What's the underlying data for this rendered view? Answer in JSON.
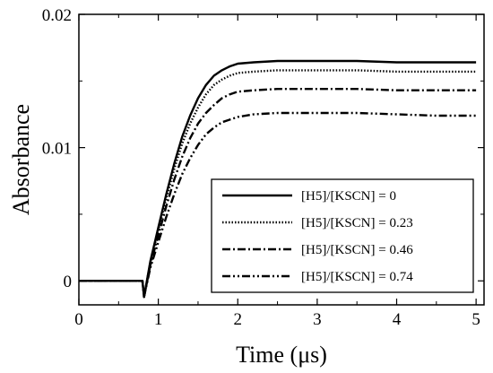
{
  "chart_data": {
    "type": "line",
    "title": "",
    "xlabel": "Time (μs)",
    "ylabel": "Absorbance",
    "xlim": [
      0,
      5.1
    ],
    "ylim": [
      -0.0018,
      0.02
    ],
    "x_ticks": [
      0,
      1,
      2,
      3,
      4,
      5
    ],
    "x_tick_labels": [
      "0",
      "1",
      "2",
      "3",
      "4",
      "5"
    ],
    "y_ticks": [
      0,
      0.01,
      0.02
    ],
    "y_tick_labels": [
      "0",
      "0.01",
      "0.02"
    ],
    "grid": false,
    "legend_position": "bottom-right",
    "series": [
      {
        "name": "[H5]/[KSCN] = 0",
        "dash": "solid",
        "x": [
          0,
          0.2,
          0.4,
          0.6,
          0.8,
          0.82,
          0.9,
          1.0,
          1.1,
          1.2,
          1.3,
          1.4,
          1.5,
          1.6,
          1.7,
          1.8,
          1.9,
          2.0,
          2.2,
          2.5,
          3.0,
          3.5,
          4.0,
          4.5,
          5.0
        ],
        "y": [
          0,
          0,
          0,
          0,
          0,
          -0.0012,
          0.0015,
          0.004,
          0.0065,
          0.0088,
          0.0108,
          0.0124,
          0.0137,
          0.0147,
          0.0154,
          0.0158,
          0.0161,
          0.0163,
          0.0164,
          0.0165,
          0.0165,
          0.0165,
          0.0164,
          0.0164,
          0.0164
        ]
      },
      {
        "name": "[H5]/[KSCN] = 0.23",
        "dash": "dotted",
        "x": [
          0,
          0.2,
          0.4,
          0.6,
          0.8,
          0.82,
          0.9,
          1.0,
          1.1,
          1.2,
          1.3,
          1.4,
          1.5,
          1.6,
          1.7,
          1.8,
          1.9,
          2.0,
          2.2,
          2.5,
          3.0,
          3.5,
          4.0,
          4.5,
          5.0
        ],
        "y": [
          0,
          0,
          0,
          0,
          0,
          -0.0012,
          0.0014,
          0.0038,
          0.0062,
          0.0084,
          0.0103,
          0.0118,
          0.013,
          0.014,
          0.0147,
          0.0151,
          0.0154,
          0.0156,
          0.0157,
          0.0158,
          0.0158,
          0.0158,
          0.0157,
          0.0157,
          0.0157
        ]
      },
      {
        "name": "[H5]/[KSCN] = 0.46",
        "dash": "dash-dot",
        "x": [
          0,
          0.2,
          0.4,
          0.6,
          0.8,
          0.82,
          0.9,
          1.0,
          1.1,
          1.2,
          1.3,
          1.4,
          1.5,
          1.6,
          1.7,
          1.8,
          1.9,
          2.0,
          2.2,
          2.5,
          3.0,
          3.5,
          4.0,
          4.5,
          5.0
        ],
        "y": [
          0,
          0,
          0,
          0,
          0,
          -0.0012,
          0.0012,
          0.0034,
          0.0056,
          0.0076,
          0.0093,
          0.0107,
          0.0118,
          0.0126,
          0.0132,
          0.0137,
          0.014,
          0.0142,
          0.0143,
          0.0144,
          0.0144,
          0.0144,
          0.0143,
          0.0143,
          0.0143
        ]
      },
      {
        "name": "[H5]/[KSCN] = 0.74",
        "dash": "dash-dot-dot",
        "x": [
          0,
          0.2,
          0.4,
          0.6,
          0.8,
          0.82,
          0.9,
          1.0,
          1.1,
          1.2,
          1.3,
          1.4,
          1.5,
          1.6,
          1.7,
          1.8,
          1.9,
          2.0,
          2.2,
          2.5,
          3.0,
          3.5,
          4.0,
          4.5,
          5.0
        ],
        "y": [
          0,
          0,
          0,
          0,
          0,
          -0.0012,
          0.001,
          0.0029,
          0.0048,
          0.0065,
          0.008,
          0.0092,
          0.0102,
          0.011,
          0.0115,
          0.0119,
          0.0121,
          0.0123,
          0.0125,
          0.0126,
          0.0126,
          0.0126,
          0.0125,
          0.0124,
          0.0124
        ]
      }
    ]
  }
}
